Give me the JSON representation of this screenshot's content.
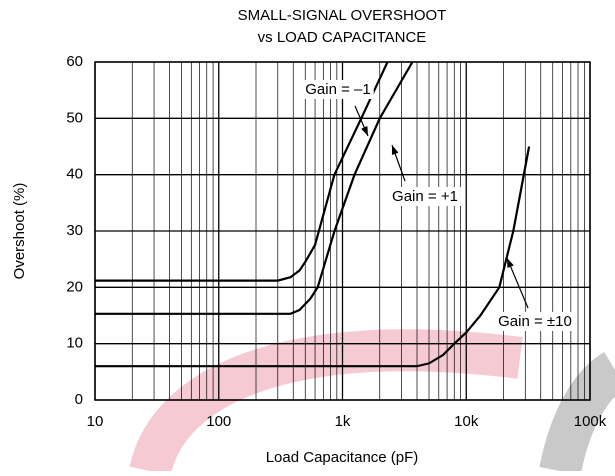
{
  "chart_data": {
    "type": "line",
    "title": [
      "SMALL-SIGNAL OVERSHOOT",
      "vs LOAD CAPACITANCE"
    ],
    "x_label": "Load Capacitance (pF)",
    "y_label": "Overshoot (%)",
    "xscale": "log",
    "xlim": [
      10,
      100000
    ],
    "ylim": [
      0,
      60
    ],
    "xticks": [
      10,
      100,
      {
        "value": 1000,
        "label": "1k"
      },
      {
        "value": 10000,
        "label": "10k"
      },
      {
        "value": 100000,
        "label": "100k"
      }
    ],
    "xminorticks": [
      20,
      30,
      40,
      50,
      60,
      70,
      80,
      90,
      200,
      300,
      400,
      500,
      600,
      700,
      800,
      900,
      2000,
      3000,
      4000,
      5000,
      6000,
      7000,
      8000,
      9000,
      20000,
      30000,
      40000,
      50000,
      60000,
      70000,
      80000,
      90000
    ],
    "yticks": [
      0,
      10,
      20,
      30,
      40,
      50,
      60
    ],
    "grid": true,
    "series": [
      {
        "name": "Gain = –1",
        "color": "#000000",
        "x": [
          10,
          300,
          380,
          450,
          500,
          600,
          860,
          1420,
          2310
        ],
        "values": [
          21.2,
          21.2,
          21.8,
          23,
          24.5,
          27.5,
          40,
          50,
          60
        ]
      },
      {
        "name": "Gain = +1",
        "color": "#000000",
        "x": [
          10,
          380,
          450,
          550,
          630,
          861,
          1250,
          2000,
          3670
        ],
        "values": [
          15.3,
          15.3,
          16,
          18,
          20,
          30,
          40,
          50,
          60
        ]
      },
      {
        "name": "Gain = ±10",
        "color": "#000000",
        "x": [
          10,
          4000,
          5000,
          6500,
          8000,
          10000,
          13000,
          18500,
          24000,
          32200
        ],
        "values": [
          6,
          6,
          6.5,
          8,
          10,
          12,
          15,
          20,
          30,
          45
        ]
      }
    ]
  }
}
